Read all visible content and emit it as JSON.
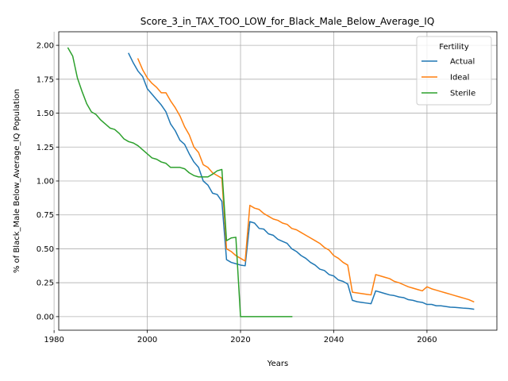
{
  "chart_data": {
    "type": "line",
    "title": "Score_3_in_TAX_TOO_LOW_for_Black_Male_Below_Average_IQ",
    "xlabel": "Years",
    "ylabel": "% of Black_Male Below_Average_IQ Population",
    "xlim": [
      1981,
      2075
    ],
    "ylim": [
      -0.1,
      2.1
    ],
    "x_ticks": [
      1980,
      2000,
      2020,
      2040,
      2060
    ],
    "y_ticks": [
      0.0,
      0.25,
      0.5,
      0.75,
      1.0,
      1.25,
      1.5,
      1.75,
      2.0
    ],
    "x_tick_labels": [
      "1980",
      "2000",
      "2020",
      "2040",
      "2060"
    ],
    "y_tick_labels": [
      "0.00",
      "0.25",
      "0.50",
      "0.75",
      "1.00",
      "1.25",
      "1.50",
      "1.75",
      "2.00"
    ],
    "grid": true,
    "legend": {
      "title": "Fertility",
      "position": "top-right"
    },
    "series": [
      {
        "name": "Actual",
        "color": "#1f77b4",
        "x": [
          1996,
          1997,
          1998,
          1999,
          2000,
          2001,
          2002,
          2003,
          2004,
          2005,
          2006,
          2007,
          2008,
          2009,
          2010,
          2011,
          2012,
          2013,
          2014,
          2015,
          2016,
          2017,
          2018,
          2019,
          2020,
          2021,
          2022,
          2023,
          2024,
          2025,
          2026,
          2027,
          2028,
          2029,
          2030,
          2031,
          2032,
          2033,
          2034,
          2035,
          2036,
          2037,
          2038,
          2039,
          2040,
          2041,
          2042,
          2043,
          2044,
          2045,
          2046,
          2047,
          2048,
          2049,
          2050,
          2051,
          2052,
          2053,
          2054,
          2055,
          2056,
          2057,
          2058,
          2059,
          2060,
          2061,
          2062,
          2063,
          2064,
          2065,
          2066,
          2067,
          2068,
          2069,
          2070
        ],
        "y": [
          1.94,
          1.87,
          1.81,
          1.77,
          1.68,
          1.64,
          1.6,
          1.56,
          1.51,
          1.42,
          1.37,
          1.3,
          1.27,
          1.2,
          1.14,
          1.1,
          1.0,
          0.97,
          0.91,
          0.9,
          0.85,
          0.42,
          0.4,
          0.39,
          0.38,
          0.375,
          0.7,
          0.69,
          0.65,
          0.645,
          0.61,
          0.6,
          0.57,
          0.555,
          0.54,
          0.5,
          0.48,
          0.45,
          0.43,
          0.4,
          0.38,
          0.35,
          0.34,
          0.31,
          0.3,
          0.27,
          0.26,
          0.24,
          0.12,
          0.11,
          0.105,
          0.1,
          0.095,
          0.19,
          0.18,
          0.17,
          0.16,
          0.155,
          0.145,
          0.14,
          0.125,
          0.12,
          0.11,
          0.105,
          0.09,
          0.09,
          0.08,
          0.08,
          0.075,
          0.07,
          0.068,
          0.065,
          0.062,
          0.06,
          0.055
        ]
      },
      {
        "name": "Ideal",
        "color": "#ff7f0e",
        "x": [
          1998,
          1999,
          2000,
          2001,
          2002,
          2003,
          2004,
          2005,
          2006,
          2007,
          2008,
          2009,
          2010,
          2011,
          2012,
          2013,
          2014,
          2015,
          2016,
          2017,
          2018,
          2019,
          2020,
          2021,
          2022,
          2023,
          2024,
          2025,
          2026,
          2027,
          2028,
          2029,
          2030,
          2031,
          2032,
          2033,
          2034,
          2035,
          2036,
          2037,
          2038,
          2039,
          2040,
          2041,
          2042,
          2043,
          2044,
          2045,
          2046,
          2047,
          2048,
          2049,
          2050,
          2051,
          2052,
          2053,
          2054,
          2055,
          2056,
          2057,
          2058,
          2059,
          2060,
          2061,
          2062,
          2063,
          2064,
          2065,
          2066,
          2067,
          2068,
          2069,
          2070
        ],
        "y": [
          1.9,
          1.82,
          1.76,
          1.72,
          1.69,
          1.65,
          1.65,
          1.59,
          1.54,
          1.48,
          1.4,
          1.34,
          1.25,
          1.21,
          1.12,
          1.1,
          1.06,
          1.04,
          1.02,
          0.5,
          0.48,
          0.45,
          0.43,
          0.41,
          0.82,
          0.8,
          0.79,
          0.76,
          0.74,
          0.72,
          0.71,
          0.69,
          0.68,
          0.65,
          0.64,
          0.62,
          0.6,
          0.58,
          0.56,
          0.54,
          0.51,
          0.49,
          0.45,
          0.43,
          0.4,
          0.38,
          0.18,
          0.175,
          0.17,
          0.165,
          0.16,
          0.31,
          0.3,
          0.29,
          0.28,
          0.26,
          0.25,
          0.235,
          0.22,
          0.21,
          0.2,
          0.19,
          0.22,
          0.205,
          0.195,
          0.185,
          0.175,
          0.165,
          0.155,
          0.145,
          0.135,
          0.125,
          0.11
        ]
      },
      {
        "name": "Sterile",
        "color": "#2ca02c",
        "x": [
          1983,
          1984,
          1985,
          1986,
          1987,
          1988,
          1989,
          1990,
          1991,
          1992,
          1993,
          1994,
          1995,
          1996,
          1997,
          1998,
          1999,
          2000,
          2001,
          2002,
          2003,
          2004,
          2005,
          2006,
          2007,
          2008,
          2009,
          2010,
          2011,
          2012,
          2013,
          2014,
          2015,
          2016,
          2017,
          2018,
          2019,
          2020,
          2021,
          2022,
          2023,
          2024,
          2025,
          2026,
          2027,
          2028,
          2029,
          2030,
          2031
        ],
        "y": [
          1.98,
          1.92,
          1.76,
          1.66,
          1.57,
          1.51,
          1.49,
          1.45,
          1.42,
          1.39,
          1.38,
          1.35,
          1.31,
          1.29,
          1.28,
          1.26,
          1.23,
          1.2,
          1.17,
          1.16,
          1.14,
          1.13,
          1.1,
          1.1,
          1.1,
          1.09,
          1.06,
          1.04,
          1.03,
          1.03,
          1.03,
          1.05,
          1.075,
          1.085,
          0.56,
          0.58,
          0.585,
          0.0,
          0.0,
          0.0,
          0.0,
          0.0,
          0.0,
          0.0,
          0.0,
          0.0,
          0.0,
          0.0,
          0.0
        ]
      }
    ]
  }
}
